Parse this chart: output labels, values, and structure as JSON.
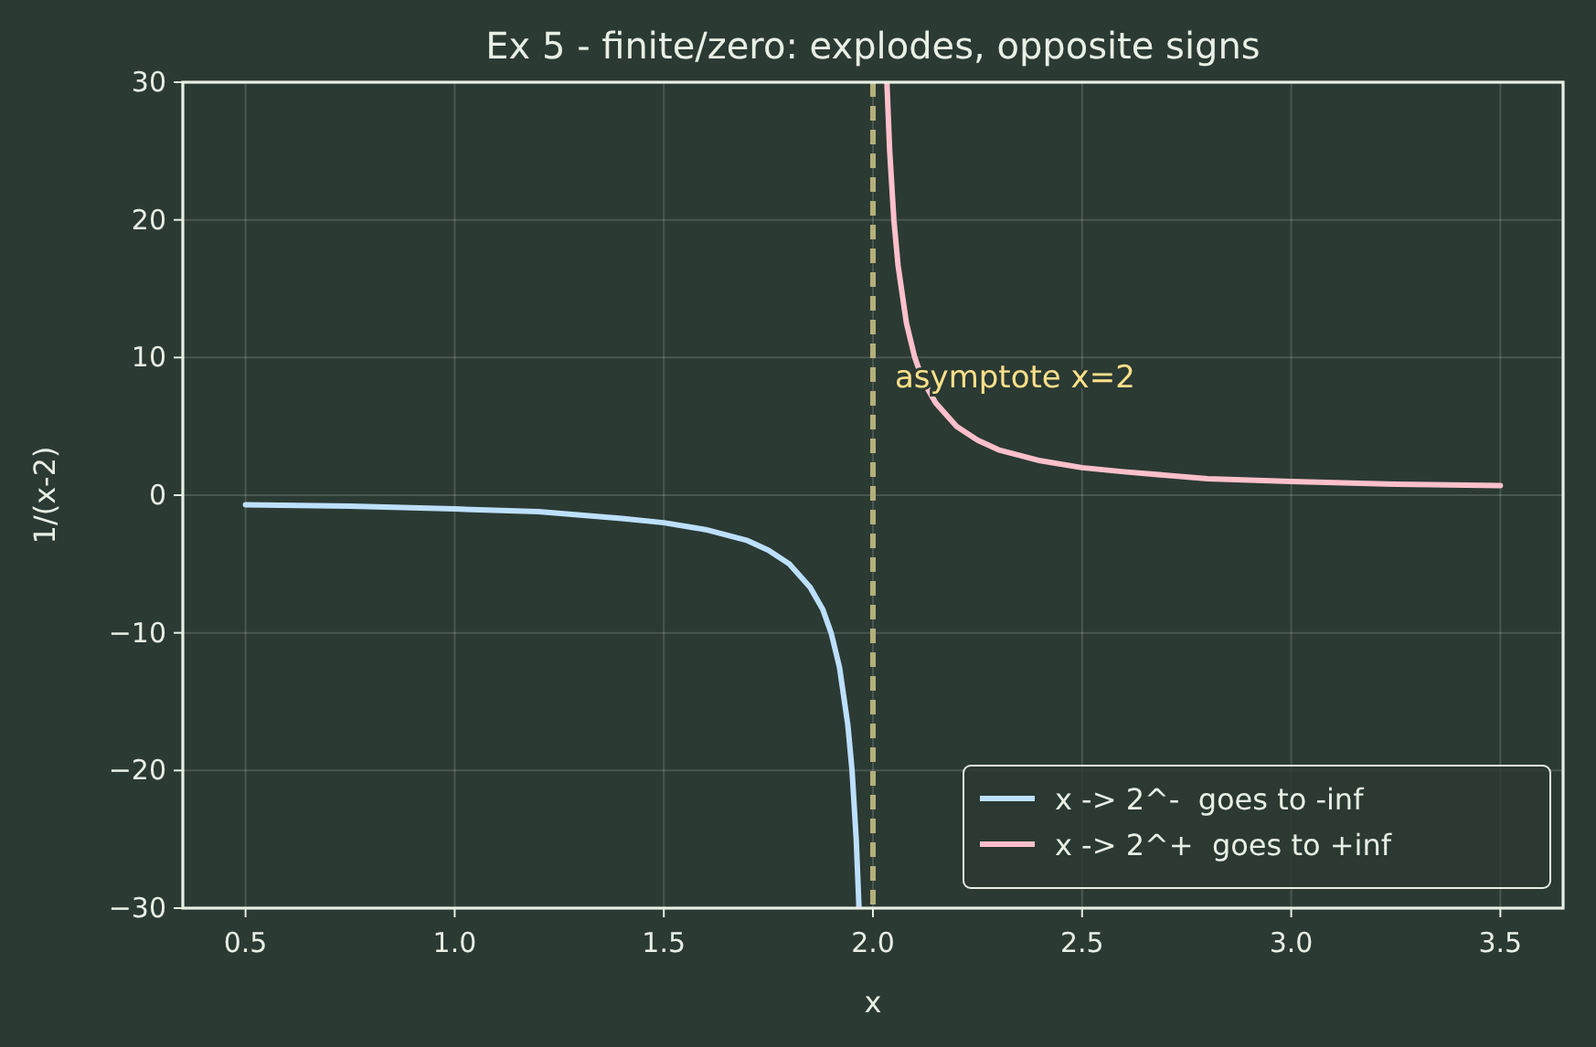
{
  "chart_data": {
    "type": "line",
    "title": "Ex 5 - finite/zero: explodes, opposite signs",
    "xlabel": "x",
    "ylabel": "1/(x-2)",
    "xlim": [
      0.35,
      3.65
    ],
    "ylim": [
      -30,
      30
    ],
    "xticks": [
      0.5,
      {
        "value": 1,
        "label": "1.0"
      },
      1.5,
      {
        "value": 2,
        "label": "2.0"
      },
      2.5,
      {
        "value": 3,
        "label": "3.0"
      },
      3.5
    ],
    "yticks": [
      {
        "value": -30,
        "label": "−30"
      },
      {
        "value": -20,
        "label": "−20"
      },
      {
        "value": -10,
        "label": "−10"
      },
      0,
      10,
      20,
      30
    ],
    "grid": true,
    "legend": "bottom right",
    "series": [
      {
        "name": "x -> 2^-  goes to -inf",
        "color": "#bde0fe",
        "x": [
          0.5,
          0.75,
          1.0,
          1.2,
          1.4,
          1.5,
          1.6,
          1.7,
          1.75,
          1.8,
          1.85,
          1.88,
          1.9,
          1.92,
          1.94,
          1.95,
          1.96,
          1.9667
        ],
        "values": [
          -0.7,
          -0.8,
          -1,
          -1.2,
          -1.7,
          -2,
          -2.5,
          -3.3,
          -4,
          -5,
          -6.7,
          -8.3,
          -10,
          -12.5,
          -16.7,
          -20,
          -25,
          -30
        ]
      },
      {
        "name": "x -> 2^+  goes to +inf",
        "color": "#ffc0cb",
        "x": [
          2.0333,
          2.04,
          2.05,
          2.06,
          2.08,
          2.1,
          2.12,
          2.15,
          2.2,
          2.25,
          2.3,
          2.4,
          2.5,
          2.6,
          2.8,
          3.0,
          3.25,
          3.5
        ],
        "values": [
          30,
          25,
          20,
          16.7,
          12.5,
          10,
          8.3,
          6.7,
          5,
          4,
          3.3,
          2.5,
          2,
          1.7,
          1.2,
          1,
          0.8,
          0.7
        ]
      }
    ],
    "ref_lines": [
      {
        "axis": "x",
        "value": 2,
        "label": "asymptote x=2",
        "color": "#b5b07a",
        "line_style": "dashed"
      }
    ]
  }
}
